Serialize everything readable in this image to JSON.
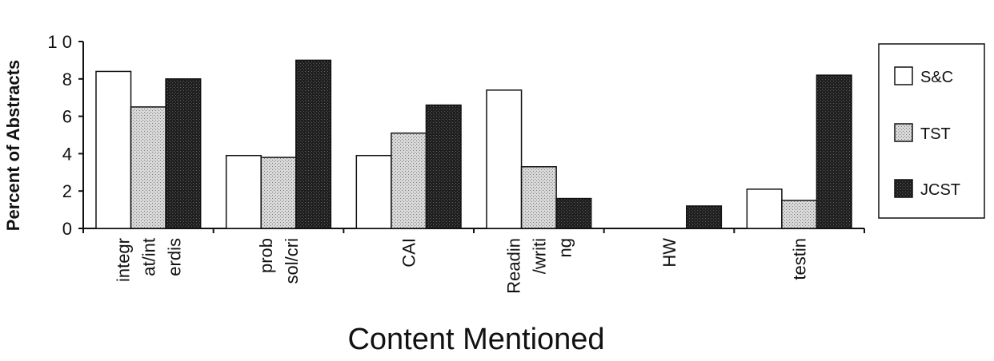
{
  "chart_data": {
    "type": "bar",
    "title": "",
    "xlabel": "Content Mentioned",
    "ylabel": "Percent of Abstracts",
    "ylim": [
      0,
      10
    ],
    "yticks": [
      "0",
      "2",
      "4",
      "6",
      "8",
      "1 0"
    ],
    "categories": [
      [
        "integr",
        "at/int",
        "erdis"
      ],
      [
        "prob",
        "sol/cri"
      ],
      [
        "CAI"
      ],
      [
        "Readin",
        "/writi",
        "ng"
      ],
      [
        "HW"
      ],
      [
        "testin"
      ]
    ],
    "series": [
      {
        "name": "S&C",
        "color": "#ffffff",
        "pattern": "none",
        "values": [
          8.4,
          3.9,
          3.9,
          7.4,
          0,
          2.1
        ]
      },
      {
        "name": "TST",
        "color": "#c8c8c8",
        "pattern": "light",
        "values": [
          6.5,
          3.8,
          5.1,
          3.3,
          0,
          1.5
        ]
      },
      {
        "name": "JCST",
        "color": "#2a2a2a",
        "pattern": "dark",
        "values": [
          8.0,
          9.0,
          6.6,
          1.6,
          1.2,
          8.2
        ]
      }
    ],
    "legend_position": "right",
    "grid": false
  }
}
